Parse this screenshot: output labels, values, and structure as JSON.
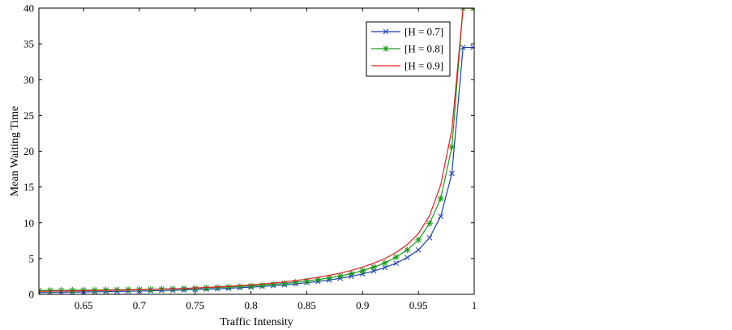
{
  "chart_data": {
    "type": "line",
    "title": "",
    "xlabel": "Traffic Intensity",
    "ylabel": "Mean Waiting Time",
    "xlim": [
      0.61,
      1.0
    ],
    "ylim": [
      0,
      40
    ],
    "xticks": [
      0.65,
      0.7,
      0.75,
      0.8,
      0.85,
      0.9,
      0.95,
      1
    ],
    "xtick_labels": [
      "0.65",
      "0.7",
      "0.75",
      "0.8",
      "0.85",
      "0.9",
      "0.95",
      "1"
    ],
    "yticks": [
      0,
      5,
      10,
      15,
      20,
      25,
      30,
      35,
      40
    ],
    "ytick_labels": [
      "0",
      "5",
      "10",
      "15",
      "20",
      "25",
      "30",
      "35",
      "40"
    ],
    "grid": false,
    "legend_position": "top-right",
    "x": [
      0.61,
      0.62,
      0.63,
      0.64,
      0.65,
      0.66,
      0.67,
      0.68,
      0.69,
      0.7,
      0.71,
      0.72,
      0.73,
      0.74,
      0.75,
      0.76,
      0.77,
      0.78,
      0.79,
      0.8,
      0.81,
      0.82,
      0.83,
      0.84,
      0.85,
      0.86,
      0.87,
      0.88,
      0.89,
      0.9,
      0.91,
      0.92,
      0.93,
      0.94,
      0.95,
      0.96,
      0.97,
      0.98,
      0.99,
      0.999
    ],
    "series": [
      {
        "name": "[H = 0.7]",
        "color": "#1f3fb3",
        "marker": "x",
        "values": [
          0.25,
          0.27,
          0.29,
          0.31,
          0.33,
          0.35,
          0.38,
          0.4,
          0.43,
          0.46,
          0.5,
          0.53,
          0.57,
          0.62,
          0.67,
          0.72,
          0.78,
          0.85,
          0.93,
          1.01,
          1.1,
          1.21,
          1.33,
          1.47,
          1.62,
          1.8,
          2.0,
          2.24,
          2.52,
          2.85,
          3.25,
          3.75,
          4.35,
          5.15,
          6.2,
          7.9,
          10.9,
          16.9,
          34.5,
          34.5
        ]
      },
      {
        "name": "[H = 0.8]",
        "color": "#1a9a1a",
        "marker": "*",
        "values": [
          0.55,
          0.55,
          0.56,
          0.57,
          0.59,
          0.6,
          0.62,
          0.64,
          0.66,
          0.68,
          0.71,
          0.74,
          0.77,
          0.81,
          0.85,
          0.9,
          0.96,
          1.02,
          1.1,
          1.18,
          1.28,
          1.4,
          1.53,
          1.68,
          1.86,
          2.06,
          2.3,
          2.58,
          2.9,
          3.3,
          3.8,
          4.4,
          5.2,
          6.2,
          7.6,
          9.9,
          13.4,
          20.6,
          40,
          40
        ]
      },
      {
        "name": "[H = 0.9]",
        "color": "#e02020",
        "marker": "none",
        "values": [
          0.42,
          0.44,
          0.46,
          0.48,
          0.5,
          0.52,
          0.55,
          0.58,
          0.61,
          0.65,
          0.69,
          0.73,
          0.78,
          0.83,
          0.89,
          0.96,
          1.03,
          1.12,
          1.21,
          1.32,
          1.44,
          1.58,
          1.74,
          1.92,
          2.13,
          2.37,
          2.65,
          2.97,
          3.35,
          3.8,
          4.35,
          5.0,
          5.85,
          6.95,
          8.5,
          11.0,
          15.3,
          23.0,
          40,
          40
        ]
      }
    ]
  }
}
